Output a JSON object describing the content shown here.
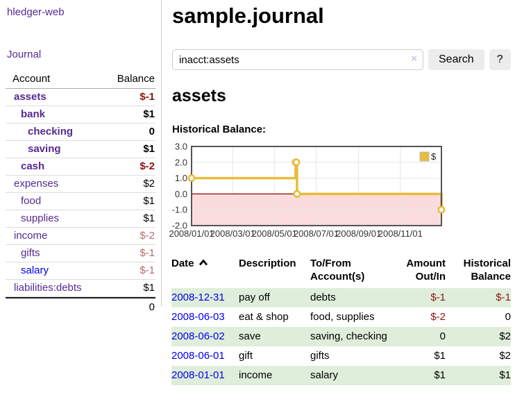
{
  "sidebar": {
    "app_title": "hledger-web",
    "nav": {
      "journal_label": "Journal"
    },
    "accounts_table": {
      "headers": {
        "account": "Account",
        "balance": "Balance"
      },
      "rows": [
        {
          "name": "assets",
          "balance": "$-1",
          "indent": 0,
          "bold": true,
          "name_style": "visited",
          "balance_style": "neg-strong"
        },
        {
          "name": "bank",
          "balance": "$1",
          "indent": 1,
          "bold": true,
          "name_style": "visited",
          "balance_style": "normal"
        },
        {
          "name": "checking",
          "balance": "0",
          "indent": 2,
          "bold": true,
          "name_style": "visited",
          "balance_style": "normal"
        },
        {
          "name": "saving",
          "balance": "$1",
          "indent": 2,
          "bold": true,
          "name_style": "visited",
          "balance_style": "normal"
        },
        {
          "name": "cash",
          "balance": "$-2",
          "indent": 1,
          "bold": true,
          "name_style": "visited",
          "balance_style": "neg-strong"
        },
        {
          "name": "expenses",
          "balance": "$2",
          "indent": 0,
          "bold": false,
          "name_style": "visited",
          "balance_style": "normal"
        },
        {
          "name": "food",
          "balance": "$1",
          "indent": 1,
          "bold": false,
          "name_style": "visited",
          "balance_style": "normal"
        },
        {
          "name": "supplies",
          "balance": "$1",
          "indent": 1,
          "bold": false,
          "name_style": "visited",
          "balance_style": "normal"
        },
        {
          "name": "income",
          "balance": "$-2",
          "indent": 0,
          "bold": false,
          "name_style": "visited",
          "balance_style": "neg-muted"
        },
        {
          "name": "gifts",
          "balance": "$-1",
          "indent": 1,
          "bold": false,
          "name_style": "visited",
          "balance_style": "neg-muted"
        },
        {
          "name": "salary",
          "balance": "$-1",
          "indent": 1,
          "bold": false,
          "name_style": "unvisited",
          "balance_style": "neg-muted"
        },
        {
          "name": "liabilities:debts",
          "balance": "$1",
          "indent": 0,
          "bold": false,
          "name_style": "visited",
          "balance_style": "normal"
        }
      ],
      "total": "0"
    }
  },
  "main": {
    "page_title": "sample.journal",
    "search": {
      "query": "inacct:assets",
      "clear_icon": "×",
      "search_button": "Search",
      "help_button": "?"
    },
    "account_heading": "assets",
    "chart_heading": "Historical Balance:",
    "register_table": {
      "headers": {
        "date": "Date",
        "description": "Description",
        "accounts": "To/From Account(s)",
        "amount": "Amount Out/In",
        "balance": "Historical Balance"
      },
      "sort": {
        "column": "date",
        "direction": "asc"
      },
      "rows": [
        {
          "date": "2008-12-31",
          "description": "pay off",
          "accounts": "debts",
          "amount": "$-1",
          "amount_negative": true,
          "balance": "$-1",
          "balance_negative": true
        },
        {
          "date": "2008-06-03",
          "description": "eat & shop",
          "accounts": "food, supplies",
          "amount": "$-2",
          "amount_negative": true,
          "balance": "0",
          "balance_negative": false
        },
        {
          "date": "2008-06-02",
          "description": "save",
          "accounts": "saving, checking",
          "amount": "0",
          "amount_negative": false,
          "balance": "$2",
          "balance_negative": false
        },
        {
          "date": "2008-06-01",
          "description": "gift",
          "accounts": "gifts",
          "amount": "$1",
          "amount_negative": false,
          "balance": "$2",
          "balance_negative": false
        },
        {
          "date": "2008-01-01",
          "description": "income",
          "accounts": "salary",
          "amount": "$1",
          "amount_negative": false,
          "balance": "$1",
          "balance_negative": false
        }
      ]
    }
  },
  "chart_data": {
    "type": "line",
    "step": true,
    "title": "Historical Balance",
    "xlabel": "",
    "ylabel": "",
    "xlim": [
      "2008-01-01",
      "2008-12-31"
    ],
    "ylim": [
      -2,
      3
    ],
    "y_ticks": [
      {
        "v": 3,
        "label": "3.0"
      },
      {
        "v": 2,
        "label": "2.0"
      },
      {
        "v": 1,
        "label": "1.0"
      },
      {
        "v": 0,
        "label": "0.0"
      },
      {
        "v": -1,
        "label": "-1.0"
      },
      {
        "v": -2,
        "label": "-2.0"
      }
    ],
    "x_ticks": [
      {
        "date": "2008-01-01",
        "label": "2008/01/01"
      },
      {
        "date": "2008-03-01",
        "label": "2008/03/01"
      },
      {
        "date": "2008-05-01",
        "label": "2008/05/01"
      },
      {
        "date": "2008-07-01",
        "label": "2008/07/01"
      },
      {
        "date": "2008-09-01",
        "label": "2008/09/01"
      },
      {
        "date": "2008-11-01",
        "label": "2008/11/01"
      }
    ],
    "series": [
      {
        "name": "$",
        "color": "#e8bc3a",
        "points": [
          {
            "x": "2008-01-01",
            "y": 1
          },
          {
            "x": "2008-06-01",
            "y": 2
          },
          {
            "x": "2008-06-02",
            "y": 2
          },
          {
            "x": "2008-06-03",
            "y": 0
          },
          {
            "x": "2008-12-31",
            "y": -1
          }
        ]
      }
    ],
    "legend": {
      "label": "$",
      "position": "top-right"
    },
    "grid": true,
    "gridline_color": "#e6e6e6",
    "zero_line_color": "#8b0000",
    "negative_region_color": "#fadcdc",
    "border_color": "#545454"
  },
  "colors": {
    "link_visited": "#552a90",
    "link_unvisited": "#0000ee",
    "negative_strong": "#8b1414",
    "negative_muted": "#b46a6e",
    "row_stripe_green": "#dfeeda",
    "accent_yellow": "#e8bc3a"
  }
}
